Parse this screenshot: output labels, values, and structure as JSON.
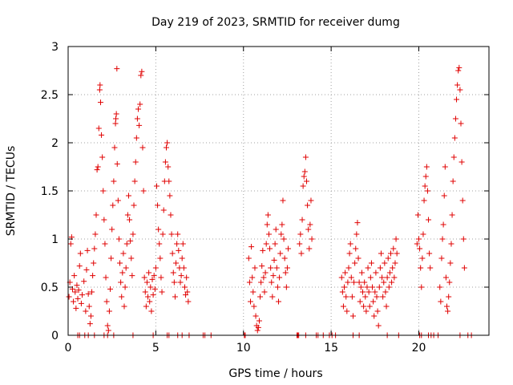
{
  "chart_data": {
    "type": "scatter",
    "title": "Day 219 of 2023, SRMTID for receiver dumg",
    "xlabel": "GPS time / hours",
    "ylabel": "SRMTID / TECUs",
    "xlim": [
      0,
      24
    ],
    "ylim": [
      0,
      3
    ],
    "xticks": [
      0,
      5,
      10,
      15,
      20
    ],
    "xtick_labels": [
      "0",
      "5",
      "10",
      "15",
      "20"
    ],
    "yticks": [
      0,
      0.5,
      1,
      1.5,
      2,
      2.5,
      3
    ],
    "ytick_labels": [
      "0",
      "0.5",
      "1",
      "1.5",
      "2",
      "2.5",
      "3"
    ],
    "grid": true,
    "marker": "plus",
    "series": [
      {
        "name": "SRMTID",
        "color": "#e00000",
        "points": [
          [
            0.05,
            0.4
          ],
          [
            0.1,
            0.55
          ],
          [
            0.15,
            0.95
          ],
          [
            0.2,
            1.02
          ],
          [
            0.25,
            0.48
          ],
          [
            0.3,
            0.35
          ],
          [
            0.35,
            0.62
          ],
          [
            0.4,
            0.45
          ],
          [
            0.45,
            0.28
          ],
          [
            0.5,
            0.52
          ],
          [
            0.55,
            0.38
          ],
          [
            0.6,
            0.47
          ],
          [
            0.65,
            0.72
          ],
          [
            0.7,
            0.85
          ],
          [
            0.75,
            0.33
          ],
          [
            0.8,
            0.42
          ],
          [
            0.9,
            0.56
          ],
          [
            1.0,
            0.25
          ],
          [
            1.05,
            0.68
          ],
          [
            1.1,
            0.88
          ],
          [
            1.15,
            0.43
          ],
          [
            1.2,
            0.3
          ],
          [
            1.25,
            0.12
          ],
          [
            1.3,
            0.2
          ],
          [
            1.35,
            0.45
          ],
          [
            1.4,
            0.62
          ],
          [
            1.45,
            0.75
          ],
          [
            1.5,
            0.9
          ],
          [
            1.55,
            1.05
          ],
          [
            1.6,
            1.25
          ],
          [
            1.65,
            1.72
          ],
          [
            1.7,
            1.75
          ],
          [
            1.75,
            2.15
          ],
          [
            1.8,
            2.55
          ],
          [
            1.82,
            2.6
          ],
          [
            1.85,
            2.42
          ],
          [
            1.9,
            2.08
          ],
          [
            1.95,
            1.85
          ],
          [
            2.0,
            1.5
          ],
          [
            2.05,
            1.2
          ],
          [
            2.1,
            0.95
          ],
          [
            2.15,
            0.6
          ],
          [
            2.2,
            0.35
          ],
          [
            2.25,
            0.1
          ],
          [
            2.3,
            0.05
          ],
          [
            2.35,
            0.25
          ],
          [
            2.4,
            0.48
          ],
          [
            2.45,
            0.8
          ],
          [
            2.5,
            1.1
          ],
          [
            2.55,
            1.35
          ],
          [
            2.6,
            1.6
          ],
          [
            2.65,
            1.95
          ],
          [
            2.7,
            2.2
          ],
          [
            2.72,
            2.25
          ],
          [
            2.75,
            2.3
          ],
          [
            2.78,
            2.77
          ],
          [
            2.8,
            1.78
          ],
          [
            2.85,
            1.4
          ],
          [
            2.9,
            1.0
          ],
          [
            2.95,
            0.75
          ],
          [
            3.0,
            0.55
          ],
          [
            3.05,
            0.4
          ],
          [
            3.1,
            0.65
          ],
          [
            3.15,
            0.85
          ],
          [
            3.2,
            0.3
          ],
          [
            3.25,
            0.5
          ],
          [
            3.3,
            0.7
          ],
          [
            3.35,
            0.95
          ],
          [
            3.4,
            1.25
          ],
          [
            3.45,
            1.45
          ],
          [
            3.5,
            1.2
          ],
          [
            3.55,
            0.98
          ],
          [
            3.6,
            0.8
          ],
          [
            3.65,
            0.62
          ],
          [
            3.7,
            1.05
          ],
          [
            3.75,
            1.35
          ],
          [
            3.8,
            1.6
          ],
          [
            3.85,
            1.8
          ],
          [
            3.9,
            2.05
          ],
          [
            3.95,
            2.25
          ],
          [
            4.0,
            2.35
          ],
          [
            4.05,
            2.18
          ],
          [
            4.1,
            2.4
          ],
          [
            4.15,
            2.7
          ],
          [
            4.2,
            2.74
          ],
          [
            4.25,
            1.95
          ],
          [
            4.3,
            1.5
          ],
          [
            4.35,
            0.6
          ],
          [
            4.4,
            0.45
          ],
          [
            4.45,
            0.3
          ],
          [
            4.5,
            0.55
          ],
          [
            4.55,
            0.4
          ],
          [
            4.6,
            0.65
          ],
          [
            4.65,
            0.35
          ],
          [
            4.7,
            0.5
          ],
          [
            4.75,
            0.25
          ],
          [
            4.8,
            0.58
          ],
          [
            4.85,
            0.42
          ],
          [
            4.9,
            0.62
          ],
          [
            4.95,
            0.48
          ],
          [
            5.0,
            0.7
          ],
          [
            5.05,
            1.55
          ],
          [
            5.1,
            1.35
          ],
          [
            5.15,
            1.1
          ],
          [
            5.2,
            0.95
          ],
          [
            5.25,
            0.8
          ],
          [
            5.3,
            0.6
          ],
          [
            5.35,
            0.45
          ],
          [
            5.4,
            1.05
          ],
          [
            5.45,
            1.3
          ],
          [
            5.5,
            1.6
          ],
          [
            5.55,
            1.8
          ],
          [
            5.6,
            1.95
          ],
          [
            5.65,
            2.0
          ],
          [
            5.7,
            1.75
          ],
          [
            5.75,
            1.6
          ],
          [
            5.8,
            1.45
          ],
          [
            5.85,
            1.25
          ],
          [
            5.9,
            1.05
          ],
          [
            5.95,
            0.85
          ],
          [
            6.0,
            0.65
          ],
          [
            6.05,
            0.55
          ],
          [
            6.1,
            0.4
          ],
          [
            6.15,
            0.75
          ],
          [
            6.2,
            0.95
          ],
          [
            6.25,
            1.05
          ],
          [
            6.3,
            0.88
          ],
          [
            6.35,
            0.7
          ],
          [
            6.4,
            0.55
          ],
          [
            6.45,
            0.62
          ],
          [
            6.5,
            0.8
          ],
          [
            6.55,
            0.95
          ],
          [
            6.6,
            0.7
          ],
          [
            6.65,
            0.5
          ],
          [
            6.7,
            0.42
          ],
          [
            6.75,
            0.6
          ],
          [
            6.8,
            0.45
          ],
          [
            6.85,
            0.35
          ],
          [
            10.3,
            0.8
          ],
          [
            10.35,
            0.55
          ],
          [
            10.4,
            0.35
          ],
          [
            10.45,
            0.92
          ],
          [
            10.5,
            0.6
          ],
          [
            10.55,
            0.45
          ],
          [
            10.6,
            0.3
          ],
          [
            10.65,
            0.7
          ],
          [
            10.7,
            0.2
          ],
          [
            10.75,
            0.1
          ],
          [
            10.8,
            0.05
          ],
          [
            10.85,
            0.08
          ],
          [
            10.9,
            0.15
          ],
          [
            10.95,
            0.4
          ],
          [
            11.0,
            0.55
          ],
          [
            11.05,
            0.72
          ],
          [
            11.1,
            0.88
          ],
          [
            11.15,
            0.6
          ],
          [
            11.2,
            0.45
          ],
          [
            11.25,
            0.65
          ],
          [
            11.3,
            0.95
          ],
          [
            11.35,
            1.15
          ],
          [
            11.4,
            1.25
          ],
          [
            11.45,
            1.05
          ],
          [
            11.5,
            0.9
          ],
          [
            11.55,
            0.7
          ],
          [
            11.6,
            0.55
          ],
          [
            11.65,
            0.4
          ],
          [
            11.7,
            0.62
          ],
          [
            11.75,
            0.78
          ],
          [
            11.8,
            0.95
          ],
          [
            11.85,
            1.1
          ],
          [
            11.9,
            0.7
          ],
          [
            11.95,
            0.5
          ],
          [
            12.0,
            0.35
          ],
          [
            12.05,
            0.6
          ],
          [
            12.1,
            0.85
          ],
          [
            12.15,
            1.05
          ],
          [
            12.2,
            1.15
          ],
          [
            12.25,
            1.4
          ],
          [
            12.3,
            1.0
          ],
          [
            12.35,
            0.8
          ],
          [
            12.4,
            0.65
          ],
          [
            12.45,
            0.5
          ],
          [
            12.5,
            0.7
          ],
          [
            12.55,
            0.9
          ],
          [
            13.2,
            0.95
          ],
          [
            13.25,
            1.05
          ],
          [
            13.3,
            0.85
          ],
          [
            13.35,
            1.2
          ],
          [
            13.4,
            1.55
          ],
          [
            13.45,
            1.65
          ],
          [
            13.5,
            1.7
          ],
          [
            13.55,
            1.85
          ],
          [
            13.6,
            1.6
          ],
          [
            13.65,
            1.35
          ],
          [
            13.7,
            1.1
          ],
          [
            13.75,
            0.9
          ],
          [
            13.8,
            1.15
          ],
          [
            13.85,
            1.4
          ],
          [
            13.9,
            1.0
          ],
          [
            15.6,
            0.6
          ],
          [
            15.65,
            0.45
          ],
          [
            15.7,
            0.3
          ],
          [
            15.75,
            0.5
          ],
          [
            15.8,
            0.65
          ],
          [
            15.85,
            0.4
          ],
          [
            15.9,
            0.25
          ],
          [
            15.95,
            0.55
          ],
          [
            16.0,
            0.7
          ],
          [
            16.05,
            0.85
          ],
          [
            16.1,
            0.95
          ],
          [
            16.15,
            0.6
          ],
          [
            16.2,
            0.4
          ],
          [
            16.25,
            0.2
          ],
          [
            16.3,
            0.55
          ],
          [
            16.35,
            0.75
          ],
          [
            16.4,
            0.9
          ],
          [
            16.45,
            1.05
          ],
          [
            16.5,
            1.17
          ],
          [
            16.55,
            0.8
          ],
          [
            16.6,
            0.55
          ],
          [
            16.65,
            0.35
          ],
          [
            16.7,
            0.5
          ],
          [
            16.75,
            0.65
          ],
          [
            16.8,
            0.45
          ],
          [
            16.85,
            0.3
          ],
          [
            16.9,
            0.55
          ],
          [
            16.95,
            0.4
          ],
          [
            17.0,
            0.25
          ],
          [
            17.05,
            0.5
          ],
          [
            17.1,
            0.7
          ],
          [
            17.15,
            0.45
          ],
          [
            17.2,
            0.3
          ],
          [
            17.25,
            0.6
          ],
          [
            17.3,
            0.75
          ],
          [
            17.35,
            0.5
          ],
          [
            17.4,
            0.35
          ],
          [
            17.45,
            0.2
          ],
          [
            17.5,
            0.45
          ],
          [
            17.55,
            0.65
          ],
          [
            17.6,
            0.4
          ],
          [
            17.65,
            0.25
          ],
          [
            17.7,
            0.1
          ],
          [
            17.75,
            0.5
          ],
          [
            17.8,
            0.7
          ],
          [
            17.85,
            0.85
          ],
          [
            17.9,
            0.6
          ],
          [
            17.95,
            0.4
          ],
          [
            18.0,
            0.55
          ],
          [
            18.05,
            0.75
          ],
          [
            18.1,
            0.45
          ],
          [
            18.15,
            0.3
          ],
          [
            18.2,
            0.6
          ],
          [
            18.25,
            0.8
          ],
          [
            18.3,
            0.5
          ],
          [
            18.35,
            0.65
          ],
          [
            18.4,
            0.85
          ],
          [
            18.45,
            0.55
          ],
          [
            18.5,
            0.7
          ],
          [
            18.55,
            0.9
          ],
          [
            18.6,
            0.6
          ],
          [
            18.65,
            0.75
          ],
          [
            18.7,
            1.0
          ],
          [
            18.75,
            0.85
          ],
          [
            19.9,
            0.95
          ],
          [
            19.95,
            1.25
          ],
          [
            20.0,
            1.0
          ],
          [
            20.05,
            0.9
          ],
          [
            20.1,
            0.7
          ],
          [
            20.15,
            0.5
          ],
          [
            20.2,
            0.8
          ],
          [
            20.25,
            1.05
          ],
          [
            20.3,
            1.4
          ],
          [
            20.35,
            1.55
          ],
          [
            20.4,
            1.65
          ],
          [
            20.45,
            1.75
          ],
          [
            20.5,
            1.5
          ],
          [
            20.55,
            1.2
          ],
          [
            20.6,
            0.85
          ],
          [
            20.65,
            0.7
          ],
          [
            21.2,
            0.5
          ],
          [
            21.25,
            0.35
          ],
          [
            21.3,
            0.8
          ],
          [
            21.35,
            1.0
          ],
          [
            21.4,
            1.15
          ],
          [
            21.45,
            1.45
          ],
          [
            21.5,
            1.75
          ],
          [
            21.55,
            0.6
          ],
          [
            21.6,
            0.3
          ],
          [
            21.65,
            0.25
          ],
          [
            21.7,
            0.4
          ],
          [
            21.75,
            0.55
          ],
          [
            21.8,
            0.75
          ],
          [
            21.85,
            0.95
          ],
          [
            21.9,
            1.25
          ],
          [
            21.95,
            1.6
          ],
          [
            22.0,
            1.85
          ],
          [
            22.05,
            2.05
          ],
          [
            22.1,
            2.25
          ],
          [
            22.15,
            2.45
          ],
          [
            22.2,
            2.6
          ],
          [
            22.25,
            2.75
          ],
          [
            22.3,
            2.78
          ],
          [
            22.35,
            2.55
          ],
          [
            22.4,
            2.2
          ],
          [
            22.45,
            1.8
          ],
          [
            22.5,
            1.4
          ],
          [
            22.55,
            1.0
          ],
          [
            22.6,
            0.7
          ]
        ],
        "zero_points": [
          0.55,
          0.65,
          0.95,
          1.15,
          1.5,
          2.05,
          2.25,
          2.6,
          3.7,
          4.85,
          5.65,
          5.75,
          6.25,
          6.5,
          6.9,
          7.7,
          7.8,
          8.15,
          10.05,
          10.1,
          13.05,
          13.1,
          13.15,
          13.55,
          14.15,
          14.25,
          14.55,
          14.9,
          15.05,
          15.25,
          16.25,
          16.6,
          18.2,
          18.85,
          20.05,
          20.15,
          20.55,
          20.7,
          20.85,
          21.1,
          22.35,
          22.8,
          23.0
        ]
      }
    ]
  }
}
